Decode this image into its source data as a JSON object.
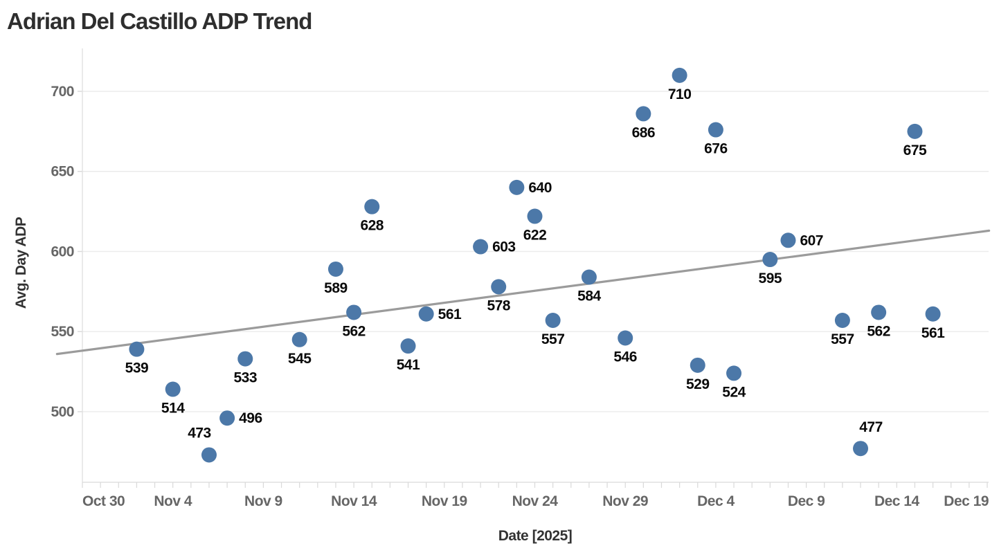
{
  "chart_data": {
    "type": "scatter",
    "title": "Adrian Del Castillo ADP Trend",
    "xlabel": "Date [2025]",
    "ylabel": "Avg. Day ADP",
    "legend": "none",
    "grid": "horizontal-only",
    "ylim": [
      456,
      727
    ],
    "y_ticks": [
      700,
      650,
      600,
      550,
      500
    ],
    "x_ticks": [
      {
        "label": "Oct 30",
        "day": 0
      },
      {
        "label": "Nov 4",
        "day": 5
      },
      {
        "label": "Nov 9",
        "day": 10
      },
      {
        "label": "Nov 14",
        "day": 15
      },
      {
        "label": "Nov 19",
        "day": 20
      },
      {
        "label": "Nov 24",
        "day": 25
      },
      {
        "label": "Nov 29",
        "day": 30
      },
      {
        "label": "Dec 4",
        "day": 35
      },
      {
        "label": "Dec 9",
        "day": 40
      },
      {
        "label": "Dec 14",
        "day": 45
      },
      {
        "label": "Dec 19",
        "day": 50
      }
    ],
    "minor_tick_every_day": 1,
    "points": [
      {
        "date": "Nov 2",
        "day": 3,
        "value": 539,
        "label": "539",
        "label_pos": "below"
      },
      {
        "date": "Nov 4",
        "day": 5,
        "value": 514,
        "label": "514",
        "label_pos": "below"
      },
      {
        "date": "Nov 6",
        "day": 7,
        "value": 473,
        "label": "473",
        "label_pos": "above-left"
      },
      {
        "date": "Nov 7",
        "day": 8,
        "value": 496,
        "label": "496",
        "label_pos": "right"
      },
      {
        "date": "Nov 8",
        "day": 9,
        "value": 533,
        "label": "533",
        "label_pos": "below"
      },
      {
        "date": "Nov 11",
        "day": 12,
        "value": 545,
        "label": "545",
        "label_pos": "below"
      },
      {
        "date": "Nov 13",
        "day": 14,
        "value": 589,
        "label": "589",
        "label_pos": "below"
      },
      {
        "date": "Nov 14",
        "day": 15,
        "value": 562,
        "label": "562",
        "label_pos": "below"
      },
      {
        "date": "Nov 15",
        "day": 16,
        "value": 628,
        "label": "628",
        "label_pos": "below"
      },
      {
        "date": "Nov 17",
        "day": 18,
        "value": 541,
        "label": "541",
        "label_pos": "below"
      },
      {
        "date": "Nov 18",
        "day": 19,
        "value": 561,
        "label": "561",
        "label_pos": "right"
      },
      {
        "date": "Nov 21",
        "day": 22,
        "value": 603,
        "label": "603",
        "label_pos": "right"
      },
      {
        "date": "Nov 22",
        "day": 23,
        "value": 578,
        "label": "578",
        "label_pos": "below"
      },
      {
        "date": "Nov 23",
        "day": 24,
        "value": 640,
        "label": "640",
        "label_pos": "right"
      },
      {
        "date": "Nov 24",
        "day": 25,
        "value": 622,
        "label": "622",
        "label_pos": "below"
      },
      {
        "date": "Nov 25",
        "day": 26,
        "value": 557,
        "label": "557",
        "label_pos": "below"
      },
      {
        "date": "Nov 27",
        "day": 28,
        "value": 584,
        "label": "584",
        "label_pos": "below"
      },
      {
        "date": "Nov 29",
        "day": 30,
        "value": 546,
        "label": "546",
        "label_pos": "below"
      },
      {
        "date": "Nov 30",
        "day": 31,
        "value": 686,
        "label": "686",
        "label_pos": "below"
      },
      {
        "date": "Dec 2",
        "day": 33,
        "value": 710,
        "label": "710",
        "label_pos": "below"
      },
      {
        "date": "Dec 3",
        "day": 34,
        "value": 529,
        "label": "529",
        "label_pos": "below"
      },
      {
        "date": "Dec 4",
        "day": 35,
        "value": 676,
        "label": "676",
        "label_pos": "below"
      },
      {
        "date": "Dec 5",
        "day": 36,
        "value": 524,
        "label": "524",
        "label_pos": "below"
      },
      {
        "date": "Dec 7",
        "day": 38,
        "value": 595,
        "label": "595",
        "label_pos": "below"
      },
      {
        "date": "Dec 8",
        "day": 39,
        "value": 607,
        "label": "607",
        "label_pos": "right"
      },
      {
        "date": "Dec 11",
        "day": 42,
        "value": 557,
        "label": "557",
        "label_pos": "below"
      },
      {
        "date": "Dec 12",
        "day": 43,
        "value": 477,
        "label": "477",
        "label_pos": "above-right"
      },
      {
        "date": "Dec 13",
        "day": 44,
        "value": 562,
        "label": "562",
        "label_pos": "below"
      },
      {
        "date": "Dec 15",
        "day": 46,
        "value": 675,
        "label": "675",
        "label_pos": "below"
      },
      {
        "date": "Dec 16",
        "day": 47,
        "value": 561,
        "label": "561",
        "label_pos": "below"
      }
    ],
    "trend_line": {
      "start_day": -1.4,
      "start_value": 536,
      "end_day": 50.1,
      "end_value": 613
    },
    "colors": {
      "dot": "#4c78a8",
      "trend": "#9b9b9b",
      "gridline": "#ebebeb",
      "axis_line": "#e0e0e0",
      "tick_mark": "#d9d9d9",
      "tick_text": "#666666",
      "title_text": "#2e2e2e",
      "label_text": "#0a0a0a"
    }
  }
}
